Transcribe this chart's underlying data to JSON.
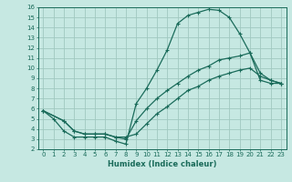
{
  "xlabel": "Humidex (Indice chaleur)",
  "bg_color": "#c6e8e2",
  "grid_color": "#a0c8c0",
  "line_color": "#1a6b5a",
  "spine_color": "#1a6b5a",
  "xlim": [
    -0.5,
    23.5
  ],
  "ylim": [
    2,
    16
  ],
  "xticks": [
    0,
    1,
    2,
    3,
    4,
    5,
    6,
    7,
    8,
    9,
    10,
    11,
    12,
    13,
    14,
    15,
    16,
    17,
    18,
    19,
    20,
    21,
    22,
    23
  ],
  "yticks": [
    2,
    3,
    4,
    5,
    6,
    7,
    8,
    9,
    10,
    11,
    12,
    13,
    14,
    15,
    16
  ],
  "curve1_x": [
    0,
    1,
    2,
    3,
    4,
    5,
    6,
    7,
    8,
    9,
    10,
    11,
    12,
    13,
    14,
    15,
    16,
    17,
    18,
    19,
    20,
    21,
    22,
    23
  ],
  "curve1_y": [
    5.8,
    5.0,
    3.8,
    3.2,
    3.2,
    3.2,
    3.2,
    2.8,
    2.5,
    6.5,
    8.0,
    9.8,
    11.8,
    14.4,
    15.2,
    15.5,
    15.8,
    15.7,
    15.0,
    13.4,
    11.5,
    8.8,
    8.5,
    8.5
  ],
  "curve2_x": [
    0,
    2,
    3,
    4,
    5,
    6,
    7,
    8,
    9,
    10,
    11,
    12,
    13,
    14,
    15,
    16,
    17,
    18,
    19,
    20,
    21,
    22,
    23
  ],
  "curve2_y": [
    5.8,
    4.8,
    3.8,
    3.5,
    3.5,
    3.5,
    3.2,
    3.0,
    4.8,
    6.0,
    7.0,
    7.8,
    8.5,
    9.2,
    9.8,
    10.2,
    10.8,
    11.0,
    11.2,
    11.5,
    9.5,
    8.8,
    8.5
  ],
  "curve3_x": [
    0,
    2,
    3,
    4,
    5,
    6,
    7,
    8,
    9,
    10,
    11,
    12,
    13,
    14,
    15,
    16,
    17,
    18,
    19,
    20,
    21,
    22,
    23
  ],
  "curve3_y": [
    5.8,
    4.8,
    3.8,
    3.5,
    3.5,
    3.5,
    3.2,
    3.2,
    3.5,
    4.5,
    5.5,
    6.2,
    7.0,
    7.8,
    8.2,
    8.8,
    9.2,
    9.5,
    9.8,
    10.0,
    9.2,
    8.8,
    8.5
  ],
  "tick_fontsize": 5,
  "xlabel_fontsize": 6
}
